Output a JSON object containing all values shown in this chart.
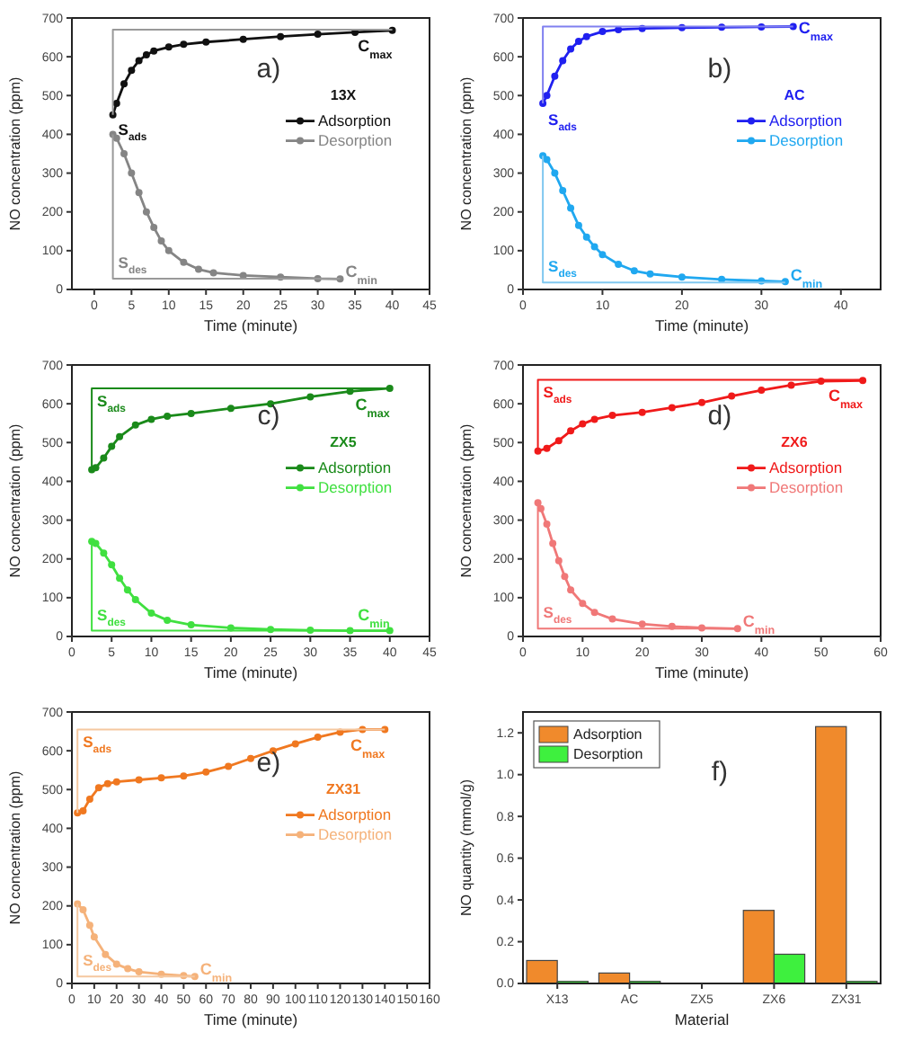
{
  "chart_data": [
    {
      "type": "line",
      "xlabel": "Time (minute)",
      "ylabel": "NO concentration (ppm)",
      "legend_title": "13X",
      "legend": "right",
      "marker": "circle",
      "xlim": [
        -3,
        45
      ],
      "ylim": [
        0,
        700
      ],
      "xticks": [
        0,
        5,
        10,
        15,
        20,
        25,
        30,
        35,
        40,
        45
      ],
      "yticks": [
        0,
        100,
        200,
        300,
        400,
        500,
        600,
        700
      ],
      "annotations": [
        "a)",
        "S$_{ads}$",
        {
          "text": "C$_{max}$",
          "x": 40,
          "y": 670
        },
        "S$_{des}$",
        {
          "text": "C$_{min}$",
          "x": 33,
          "y": 28
        }
      ],
      "series": [
        {
          "name": "Adsorption",
          "color": "#111111",
          "x": [
            2.5,
            3,
            4,
            5,
            6,
            7,
            8,
            10,
            12,
            15,
            20,
            25,
            30,
            35,
            40
          ],
          "values": [
            450,
            480,
            530,
            565,
            590,
            605,
            615,
            625,
            632,
            638,
            645,
            652,
            658,
            663,
            668
          ]
        },
        {
          "name": "Desorption",
          "color": "#858585",
          "x": [
            2.5,
            3,
            4,
            5,
            6,
            7,
            8,
            9,
            10,
            12,
            14,
            16,
            20,
            25,
            30,
            33
          ],
          "values": [
            400,
            390,
            350,
            300,
            250,
            200,
            160,
            125,
            100,
            70,
            52,
            43,
            36,
            32,
            28,
            27
          ]
        },
        {
          "type": "line",
          "marker": "none",
          "color": "#999999",
          "x": [
            2.5,
            2.5,
            40
          ],
          "values": [
            450,
            670,
            670
          ]
        },
        {
          "type": "line",
          "marker": "none",
          "color": "#999999",
          "x": [
            2.5,
            2.5,
            33
          ],
          "values": [
            400,
            28,
            28
          ]
        }
      ]
    },
    {
      "type": "line",
      "xlabel": "Time (minute)",
      "ylabel": "NO concentration (ppm)",
      "legend_title": "AC",
      "legend": "right",
      "marker": "circle",
      "xlim": [
        0,
        45
      ],
      "ylim": [
        0,
        700
      ],
      "xticks": [
        0,
        10,
        20,
        30,
        40
      ],
      "yticks": [
        0,
        100,
        200,
        300,
        400,
        500,
        600,
        700
      ],
      "annotations": [
        "b)",
        "S$_{ads}$",
        {
          "text": "C$_{max}$",
          "x": 34,
          "y": 678
        },
        "S$_{des}$",
        {
          "text": "C$_{min}$",
          "x": 33,
          "y": 18
        }
      ],
      "series": [
        {
          "name": "Adsorption",
          "color": "#2020f0",
          "x": [
            2.5,
            3,
            4,
            5,
            6,
            7,
            8,
            10,
            12,
            15,
            20,
            25,
            30,
            34
          ],
          "values": [
            480,
            500,
            550,
            590,
            620,
            640,
            652,
            665,
            670,
            673,
            675,
            676,
            677,
            678
          ]
        },
        {
          "name": "Desorption",
          "color": "#20a8f0",
          "x": [
            2.5,
            3,
            4,
            5,
            6,
            7,
            8,
            9,
            10,
            12,
            14,
            16,
            20,
            25,
            30,
            33
          ],
          "values": [
            345,
            335,
            300,
            255,
            210,
            165,
            135,
            110,
            90,
            65,
            48,
            40,
            32,
            26,
            22,
            20
          ]
        },
        {
          "type": "line",
          "marker": "none",
          "color": "#8080f0",
          "x": [
            2.5,
            2.5,
            34
          ],
          "values": [
            480,
            678,
            678
          ]
        },
        {
          "type": "line",
          "marker": "none",
          "color": "#80c8f0",
          "x": [
            2.5,
            2.5,
            33
          ],
          "values": [
            345,
            18,
            18
          ]
        }
      ]
    },
    {
      "type": "line",
      "xlabel": "Time (minute)",
      "ylabel": "NO concentration (ppm)",
      "legend_title": "ZX5",
      "legend": "right",
      "marker": "circle",
      "xlim": [
        0,
        45
      ],
      "ylim": [
        0,
        700
      ],
      "xticks": [
        0,
        5,
        10,
        15,
        20,
        25,
        30,
        35,
        40,
        45
      ],
      "yticks": [
        0,
        100,
        200,
        300,
        400,
        500,
        600,
        700
      ],
      "annotations": [
        "c)",
        "S$_{ads}$",
        {
          "text": "C$_{max}$",
          "x": 40,
          "y": 640
        },
        "S$_{des}$",
        {
          "text": "C$_{min}$",
          "x": 40,
          "y": 15
        }
      ],
      "series": [
        {
          "name": "Adsorption",
          "color": "#1a8a1a",
          "x": [
            2.5,
            3,
            4,
            5,
            6,
            8,
            10,
            12,
            15,
            20,
            25,
            30,
            35,
            40
          ],
          "values": [
            430,
            435,
            460,
            490,
            515,
            545,
            560,
            568,
            575,
            588,
            600,
            618,
            632,
            640
          ]
        },
        {
          "name": "Desorption",
          "color": "#40e040",
          "x": [
            2.5,
            3,
            4,
            5,
            6,
            7,
            8,
            10,
            12,
            15,
            20,
            25,
            30,
            35,
            40
          ],
          "values": [
            245,
            240,
            215,
            185,
            150,
            120,
            95,
            60,
            42,
            30,
            22,
            18,
            16,
            15,
            15
          ]
        },
        {
          "type": "line",
          "marker": "none",
          "color": "#1a8a1a",
          "x": [
            2.5,
            2.5,
            40
          ],
          "values": [
            430,
            640,
            640
          ]
        },
        {
          "type": "line",
          "marker": "none",
          "color": "#40e040",
          "x": [
            2.5,
            2.5,
            40
          ],
          "values": [
            245,
            15,
            15
          ]
        }
      ]
    },
    {
      "type": "line",
      "xlabel": "Time (minute)",
      "ylabel": "NO concentration (ppm)",
      "legend_title": "ZX6",
      "legend": "right",
      "marker": "circle",
      "xlim": [
        0,
        60
      ],
      "ylim": [
        0,
        700
      ],
      "xticks": [
        0,
        10,
        20,
        30,
        40,
        50,
        60
      ],
      "yticks": [
        0,
        100,
        200,
        300,
        400,
        500,
        600,
        700
      ],
      "annotations": [
        "d)",
        "S$_{ads}$",
        {
          "text": "C$_{max}$",
          "x": 57,
          "y": 662
        },
        "S$_{des}$",
        {
          "text": "C$_{min}$",
          "x": 36,
          "y": 20
        }
      ],
      "series": [
        {
          "name": "Adsorption",
          "color": "#f01a1a",
          "x": [
            2.5,
            4,
            6,
            8,
            10,
            12,
            15,
            20,
            25,
            30,
            35,
            40,
            45,
            50,
            57
          ],
          "values": [
            478,
            485,
            505,
            530,
            548,
            560,
            570,
            578,
            590,
            603,
            620,
            635,
            648,
            658,
            660
          ]
        },
        {
          "name": "Desorption",
          "color": "#f07878",
          "x": [
            2.5,
            3,
            4,
            5,
            6,
            7,
            8,
            10,
            12,
            15,
            20,
            25,
            30,
            36
          ],
          "values": [
            345,
            330,
            290,
            240,
            195,
            155,
            120,
            85,
            62,
            45,
            32,
            26,
            22,
            20
          ]
        },
        {
          "type": "line",
          "marker": "none",
          "color": "#f01a1a",
          "x": [
            2.5,
            2.5,
            57
          ],
          "values": [
            478,
            662,
            662
          ]
        },
        {
          "type": "line",
          "marker": "none",
          "color": "#f07878",
          "x": [
            2.5,
            2.5,
            36
          ],
          "values": [
            345,
            20,
            20
          ]
        }
      ]
    },
    {
      "type": "line",
      "xlabel": "Time (minute)",
      "ylabel": "NO concentration (ppm)",
      "legend_title": "ZX31",
      "legend": "right",
      "marker": "circle",
      "xlim": [
        0,
        160
      ],
      "ylim": [
        0,
        700
      ],
      "xticks": [
        0,
        10,
        20,
        30,
        40,
        50,
        60,
        70,
        80,
        90,
        100,
        110,
        120,
        130,
        140,
        150,
        160
      ],
      "yticks": [
        0,
        100,
        200,
        300,
        400,
        500,
        600,
        700
      ],
      "annotations": [
        "e)",
        "S$_{ads}$",
        {
          "text": "C$_{max}$",
          "x": 140,
          "y": 655
        },
        "S$_{des}$",
        {
          "text": "C$_{min}$",
          "x": 55,
          "y": 18
        }
      ],
      "series": [
        {
          "name": "Adsorption",
          "color": "#f07820",
          "x": [
            2.5,
            5,
            8,
            12,
            16,
            20,
            30,
            40,
            50,
            60,
            70,
            80,
            90,
            100,
            110,
            120,
            130,
            140
          ],
          "values": [
            440,
            445,
            475,
            505,
            515,
            520,
            525,
            530,
            535,
            545,
            560,
            580,
            600,
            618,
            635,
            648,
            655,
            655
          ]
        },
        {
          "name": "Desorption",
          "color": "#f5b27a",
          "x": [
            2.5,
            5,
            8,
            10,
            15,
            20,
            25,
            30,
            40,
            50,
            55
          ],
          "values": [
            205,
            190,
            150,
            120,
            75,
            50,
            38,
            30,
            24,
            20,
            18
          ]
        },
        {
          "type": "line",
          "marker": "none",
          "color": "#f5c8a0",
          "x": [
            2.5,
            2.5,
            140
          ],
          "values": [
            440,
            655,
            655
          ]
        },
        {
          "type": "line",
          "marker": "none",
          "color": "#f5c8a0",
          "x": [
            2.5,
            2.5,
            55
          ],
          "values": [
            205,
            18,
            18
          ]
        }
      ]
    },
    {
      "type": "bar",
      "xlabel": "Material",
      "ylabel": "NO quantity (mmol/g)",
      "legend": "top left",
      "categories": [
        "X13",
        "AC",
        "ZX5",
        "ZX6",
        "ZX31"
      ],
      "ylim": [
        0,
        1.3
      ],
      "yticks": [
        {
          "value": 0,
          "label": "0.0"
        },
        {
          "value": 0.2,
          "label": "0.2"
        },
        {
          "value": 0.4,
          "label": "0.4"
        },
        {
          "value": 0.6,
          "label": "0.6"
        },
        {
          "value": 0.8,
          "label": "0.8"
        },
        {
          "value": 1,
          "label": "1.0"
        },
        {
          "value": 1.2,
          "label": "1.2"
        }
      ],
      "annotations": [
        "f)"
      ],
      "series": [
        {
          "name": "Adsorption",
          "color": "#f08a2c",
          "values": [
            0.11,
            0.05,
            0,
            0.35,
            1.23
          ]
        },
        {
          "name": "Desorption",
          "color": "#3ef03e",
          "values": [
            0.01,
            0.01,
            0,
            0.14,
            0.01
          ]
        }
      ]
    }
  ]
}
